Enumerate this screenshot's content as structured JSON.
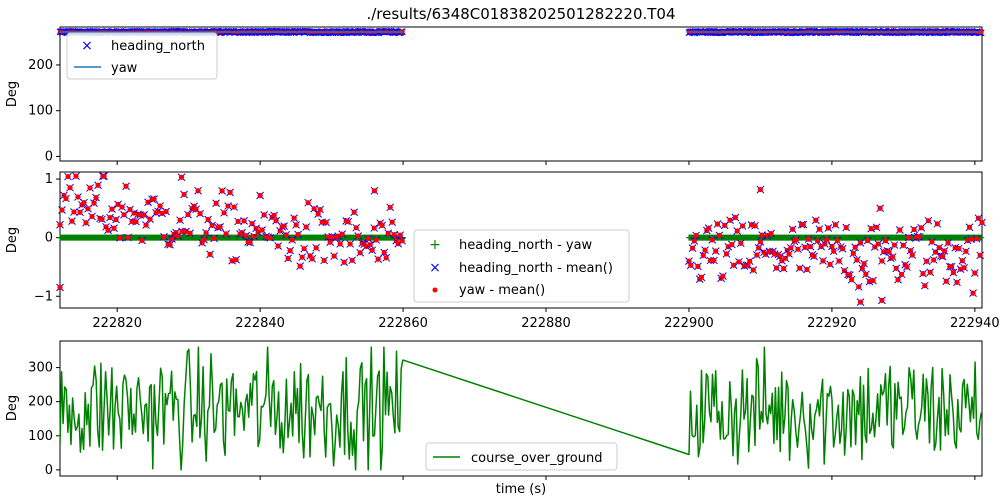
{
  "chart_data": {
    "title": "./results/6348C01838202501282220.T04",
    "xlabel": "time (s)",
    "xlim": [
      222812,
      222941
    ],
    "gap": [
      222860,
      222900
    ],
    "panels": [
      {
        "type": "scatter",
        "ylabel": "Deg",
        "ylim": [
          -10,
          283
        ],
        "yticks": [
          0,
          100,
          200
        ],
        "ytick_labels": [
          "0",
          "100",
          "200"
        ],
        "xtick_labels_visible": false,
        "legend_position": "top-left",
        "series": [
          {
            "name": "heading_north",
            "marker": "x",
            "color": "#0000ff",
            "approx_value": 272
          },
          {
            "name": "yaw",
            "marker": "line",
            "color": "#1f77b4",
            "approx_value": 272
          }
        ]
      },
      {
        "type": "scatter",
        "ylabel": "Deg",
        "ylim": [
          -1.2,
          1.12
        ],
        "yticks": [
          -1,
          0,
          1
        ],
        "ytick_labels": [
          "−1",
          "0",
          "1"
        ],
        "xtick_labels_visible": true,
        "xticks": [
          222820,
          222840,
          222860,
          222880,
          222900,
          222920,
          222940
        ],
        "xtick_labels": [
          "222820",
          "222840",
          "222860",
          "222880",
          "222900",
          "222920",
          "222940"
        ],
        "legend_position": "lower-center",
        "series": [
          {
            "name": "heading_north - yaw",
            "marker": "+",
            "color": "#008000",
            "approx_value": 0
          },
          {
            "name": "heading_north - mean()",
            "marker": "x",
            "color": "#0000ff",
            "approx_range": [
              -1.1,
              1.05
            ]
          },
          {
            "name": "yaw - mean()",
            "marker": "dot",
            "color": "#ff0000",
            "approx_range": [
              -1.1,
              1.05
            ]
          }
        ]
      },
      {
        "type": "line",
        "ylabel": "Deg",
        "ylim": [
          -18,
          378
        ],
        "yticks": [
          0,
          100,
          200,
          300
        ],
        "ytick_labels": [
          "0",
          "100",
          "200",
          "300"
        ],
        "xtick_labels_visible": false,
        "legend_position": "lower-center",
        "series": [
          {
            "name": "course_over_ground",
            "marker": "line",
            "color": "#008000",
            "approx_range": [
              0,
              360
            ],
            "gap_bridge": {
              "from": [
                222860,
                322
              ],
              "to": [
                222900,
                45
              ]
            }
          }
        ]
      }
    ]
  }
}
